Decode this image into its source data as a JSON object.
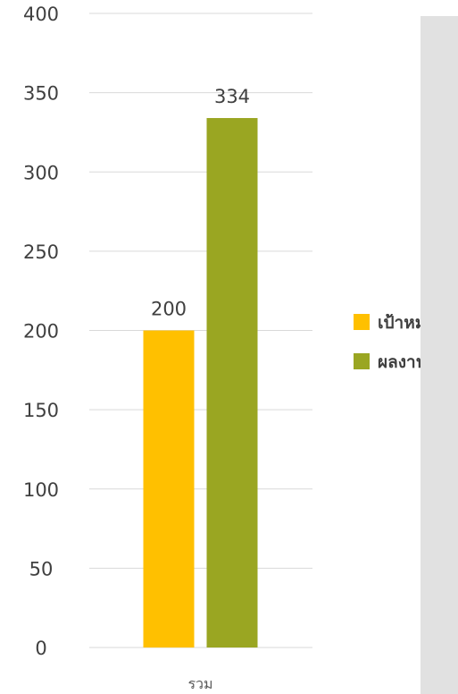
{
  "chart_data": {
    "type": "bar",
    "categories": [
      "รวม"
    ],
    "series": [
      {
        "name": "เป้าหมาย",
        "values": [
          200
        ],
        "color": "#ffc000"
      },
      {
        "name": "ผลงาน",
        "values": [
          334
        ],
        "color": "#9aa622"
      }
    ],
    "data_labels": [
      "200",
      "334"
    ],
    "ylim": [
      0,
      400
    ],
    "yticks": [
      0,
      50,
      100,
      150,
      200,
      250,
      300,
      350,
      400
    ],
    "ytick_labels": [
      "0",
      "50",
      "100",
      "150",
      "200",
      "250",
      "300",
      "350",
      "400"
    ],
    "grid": true,
    "legend_position": "right",
    "title": "",
    "xlabel": "",
    "ylabel": ""
  },
  "colors": {
    "gridline": "#d9d9d9",
    "axis_text": "#404040",
    "category_text": "#595959",
    "side_panel": "#e1e1e1"
  }
}
